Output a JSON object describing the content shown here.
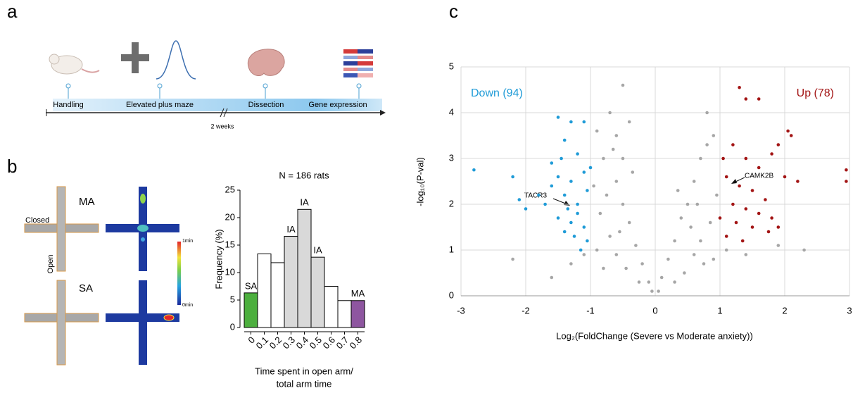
{
  "panels": {
    "a": "a",
    "b": "b",
    "c": "c"
  },
  "timeline": {
    "steps": [
      "Handling",
      "Elevated plus maze",
      "Dissection",
      "Gene expression"
    ],
    "gap": "2 weeks"
  },
  "maze": {
    "top": "MA",
    "bottom": "SA",
    "closed": "Closed",
    "open": "Open",
    "scale_max": "1min",
    "scale_min": "0min"
  },
  "chart_data": [
    {
      "type": "bar",
      "title": "N = 186 rats",
      "ylabel": "Frequency (%)",
      "xlabel": [
        "Time spent in open arm/",
        "total arm time"
      ],
      "categories": [
        "0",
        "0.1",
        "0.2",
        "0.3",
        "0.4",
        "0.5",
        "0.6",
        "0.7",
        "0.8"
      ],
      "values": [
        6.3,
        13.4,
        11.8,
        16.6,
        21.5,
        12.8,
        7.5,
        4.9,
        4.9
      ],
      "colors": [
        "#4caf3e",
        "#ffffff",
        "#ffffff",
        "#d9d9d9",
        "#d9d9d9",
        "#d9d9d9",
        "#ffffff",
        "#ffffff",
        "#8e56a0"
      ],
      "bar_labels": [
        "SA",
        null,
        null,
        "IA",
        "IA",
        "IA",
        null,
        null,
        "MA"
      ],
      "ylim": [
        0,
        25
      ],
      "yticks": [
        0,
        5,
        10,
        15,
        20,
        25
      ]
    },
    {
      "type": "scatter",
      "xlabel": "Log₂(FoldChange  (Severe vs Moderate anxiety))",
      "ylabel": "-log₁₀(P-val)",
      "xlim": [
        -3,
        3
      ],
      "xticks": [
        -3,
        -2,
        -1,
        0,
        1,
        2,
        3
      ],
      "ylim": [
        0,
        5
      ],
      "yticks": [
        0,
        1,
        2,
        3,
        4,
        5
      ],
      "grid": true,
      "annotations": [
        "TACR3",
        "CAMK2B"
      ],
      "series": [
        {
          "color": "#a6a6a6",
          "x": [
            -0.9,
            -0.8,
            -0.7,
            -0.6,
            -0.5,
            -0.6,
            -0.5,
            -0.4,
            -0.3,
            -0.2,
            -0.1,
            -0.05,
            0.05,
            0.1,
            0.2,
            0.3,
            0.4,
            0.5,
            0.6,
            0.7,
            0.8,
            0.9,
            0.95,
            0.85,
            0.7,
            0.6,
            -0.95,
            -0.85,
            -0.7,
            -0.6,
            -0.8,
            -0.9,
            -0.75,
            -0.65,
            0.75,
            0.9,
            -1.1,
            -1.3,
            -1.6,
            -2.2,
            1.1,
            1.4,
            1.9,
            2.3,
            0.45,
            -0.45,
            -0.35,
            0.3,
            -0.25,
            0.55,
            -0.55,
            0.65,
            -0.5,
            -0.4,
            0.35,
            0.8
          ],
          "values": [
            3.6,
            3.0,
            4.0,
            3.5,
            4.6,
            2.5,
            2.0,
            1.6,
            1.1,
            0.7,
            0.3,
            0.1,
            0.1,
            0.4,
            0.8,
            1.2,
            1.7,
            2.0,
            2.5,
            3.0,
            3.3,
            3.5,
            2.2,
            1.6,
            1.2,
            0.9,
            2.4,
            1.8,
            1.3,
            0.9,
            0.6,
            1.0,
            2.2,
            3.2,
            0.7,
            0.8,
            0.9,
            0.7,
            0.4,
            0.8,
            1.0,
            0.9,
            1.1,
            1.0,
            0.5,
            0.6,
            2.7,
            0.3,
            0.3,
            1.5,
            1.4,
            2.0,
            3.0,
            3.8,
            2.3,
            4.0
          ]
        },
        {
          "name": "Down (94)",
          "color": "#1f9bd7",
          "x": [
            -2.8,
            -2.2,
            -2.1,
            -2.0,
            -1.5,
            -1.3,
            -1.1,
            -1.4,
            -1.2,
            -1.6,
            -1.5,
            -1.3,
            -1.1,
            -1.8,
            -1.7,
            -1.4,
            -1.2,
            -1.05,
            -1.5,
            -1.3,
            -1.1,
            -1.2,
            -1.4,
            -1.25,
            -1.05,
            -1.15,
            -1.35,
            -1.0,
            -1.6,
            -1.45
          ],
          "values": [
            2.75,
            2.6,
            2.1,
            1.9,
            3.9,
            3.8,
            3.8,
            3.4,
            3.1,
            2.9,
            2.6,
            2.5,
            2.7,
            2.2,
            2.0,
            2.2,
            2.0,
            2.3,
            1.7,
            1.6,
            1.5,
            1.8,
            1.4,
            1.3,
            1.2,
            1.0,
            1.9,
            2.8,
            2.4,
            3.0
          ]
        },
        {
          "name": "Up (78)",
          "color": "#a31515",
          "x": [
            1.3,
            1.4,
            1.6,
            2.05,
            2.1,
            1.9,
            1.8,
            1.2,
            1.05,
            1.4,
            1.6,
            2.0,
            2.2,
            2.95,
            2.95,
            1.1,
            1.3,
            1.5,
            1.7,
            1.2,
            1.4,
            1.6,
            1.8,
            1.0,
            1.25,
            1.5,
            1.75,
            1.1,
            1.35,
            1.9
          ],
          "values": [
            4.55,
            4.3,
            4.3,
            3.6,
            3.5,
            3.3,
            3.1,
            3.3,
            3.0,
            3.0,
            2.8,
            2.6,
            2.5,
            2.75,
            2.5,
            2.6,
            2.4,
            2.3,
            2.1,
            2.0,
            1.9,
            1.8,
            1.7,
            1.7,
            1.6,
            1.5,
            1.4,
            1.3,
            1.2,
            1.5
          ]
        }
      ]
    }
  ]
}
